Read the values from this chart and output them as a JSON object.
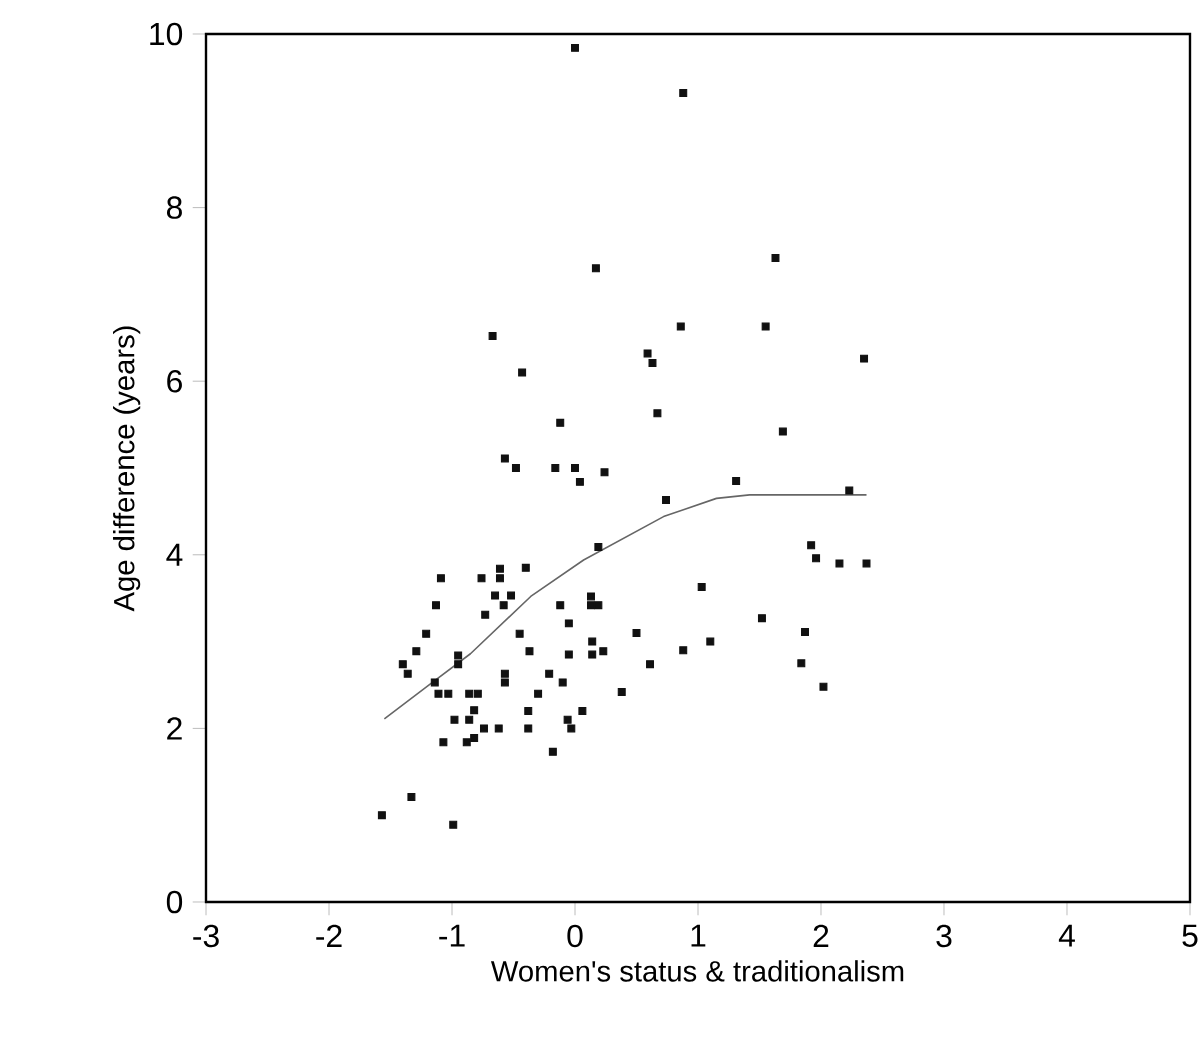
{
  "chart_data": {
    "type": "scatter",
    "xlabel": "Women's status & traditionalism",
    "ylabel": "Age difference (years)",
    "xlim": [
      -3,
      5
    ],
    "ylim": [
      0,
      10
    ],
    "xticks": [
      -3,
      -2,
      -1,
      0,
      1,
      2,
      3,
      4,
      5
    ],
    "yticks": [
      0,
      2,
      4,
      6,
      8,
      10
    ],
    "grid": false,
    "series": [
      {
        "marker": "square",
        "color": "#111111",
        "x": [
          0.0,
          0.17,
          -0.67,
          -0.43,
          -0.12,
          0.59,
          0.63,
          0.67,
          -0.57,
          -0.48,
          -0.16,
          0.0,
          0.24,
          0.04,
          0.74,
          0.19,
          -1.09,
          -0.76,
          -0.61,
          -0.61,
          -0.4,
          -1.13,
          -0.65,
          -0.52,
          -0.58,
          -0.73,
          -0.12,
          -0.05,
          0.13,
          0.13,
          0.19,
          -1.21,
          -1.29,
          -1.4,
          -1.36,
          -1.14,
          -0.95,
          -0.95,
          -0.45,
          -0.37,
          -0.57,
          -0.57,
          -0.21,
          -0.1,
          -0.05,
          0.14,
          0.14,
          0.23,
          0.5,
          0.61,
          0.38,
          -1.11,
          -1.03,
          -0.86,
          -0.79,
          -0.82,
          -0.98,
          -0.86,
          -0.3,
          -0.38,
          0.06,
          -0.06,
          -0.03,
          -0.74,
          -0.62,
          -0.38,
          -1.07,
          -0.88,
          -0.82,
          -0.18,
          -1.57,
          -1.33,
          -0.99,
          0.88,
          1.63,
          0.86,
          1.55,
          2.35,
          1.69,
          1.31,
          2.23,
          1.92,
          1.96,
          2.15,
          2.37,
          1.03,
          1.52,
          1.87,
          0.88,
          1.1,
          1.84,
          2.02
        ],
        "values": [
          9.84,
          7.3,
          6.52,
          6.1,
          5.52,
          6.32,
          6.21,
          5.63,
          5.11,
          5.0,
          5.0,
          5.0,
          4.95,
          4.84,
          4.63,
          4.09,
          3.73,
          3.73,
          3.84,
          3.73,
          3.85,
          3.42,
          3.53,
          3.53,
          3.42,
          3.31,
          3.42,
          3.21,
          3.52,
          3.42,
          3.42,
          3.09,
          2.89,
          2.74,
          2.63,
          2.53,
          2.84,
          2.74,
          3.09,
          2.89,
          2.63,
          2.53,
          2.63,
          2.53,
          2.85,
          3.0,
          2.85,
          2.89,
          3.1,
          2.74,
          2.42,
          2.4,
          2.4,
          2.4,
          2.4,
          2.21,
          2.1,
          2.1,
          2.4,
          2.2,
          2.2,
          2.1,
          2.0,
          2.0,
          2.0,
          2.0,
          1.84,
          1.84,
          1.89,
          1.73,
          1.0,
          1.21,
          0.89,
          9.32,
          7.42,
          6.63,
          6.63,
          6.26,
          5.42,
          4.85,
          4.74,
          4.11,
          3.96,
          3.9,
          3.9,
          3.63,
          3.27,
          3.11,
          2.9,
          3.0,
          2.75,
          2.48
        ]
      },
      {
        "type": "line",
        "marker": "none",
        "color": "#666666",
        "x": [
          -1.55,
          -1.17,
          -0.85,
          -0.36,
          0.07,
          0.72,
          1.15,
          1.42,
          2.37
        ],
        "values": [
          2.11,
          2.52,
          2.86,
          3.52,
          3.94,
          4.44,
          4.65,
          4.69,
          4.69
        ]
      }
    ]
  }
}
